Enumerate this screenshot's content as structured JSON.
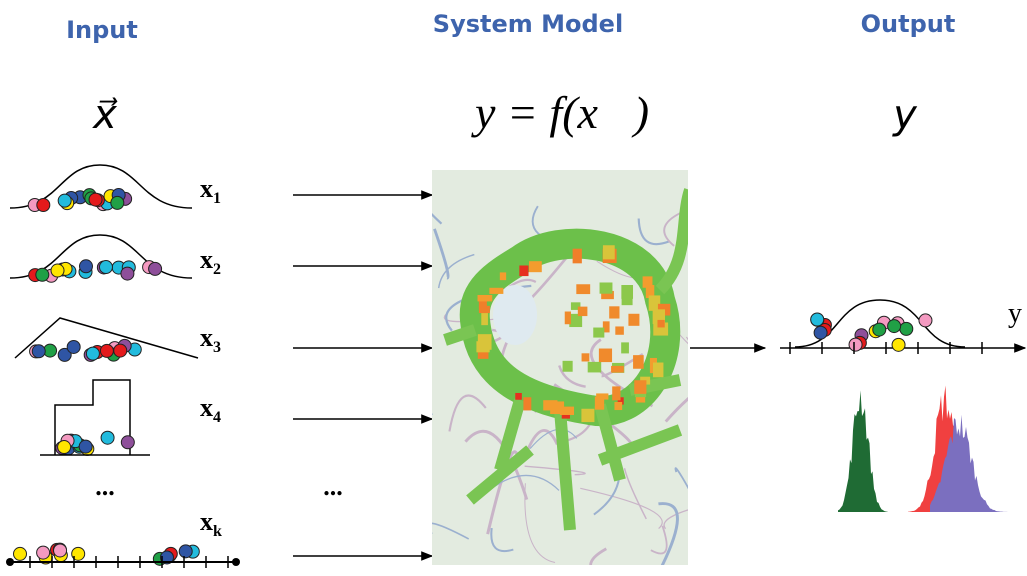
{
  "header": {
    "input": "Input",
    "system_model": "System Model",
    "output": "Output"
  },
  "symbols": {
    "input": "x⃗",
    "model": "y = f(x⃗)",
    "output": "y"
  },
  "inputs": [
    {
      "base": "x",
      "sub": "1"
    },
    {
      "base": "x",
      "sub": "2"
    },
    {
      "base": "x",
      "sub": "3"
    },
    {
      "base": "x",
      "sub": "4"
    },
    {
      "base": "x",
      "sub": "k"
    }
  ],
  "ellipsis": {
    "inputs": "...",
    "arrows": "..."
  },
  "output_axis": "y"
}
